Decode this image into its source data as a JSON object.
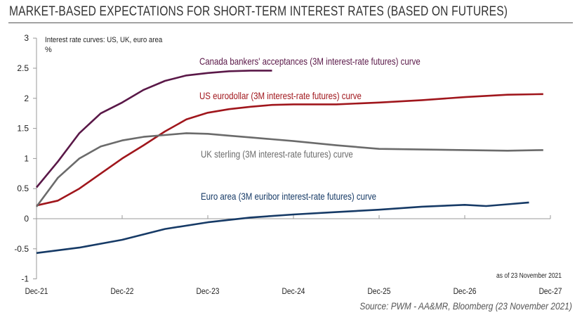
{
  "title": "MARKET-BASED EXPECTATIONS FOR SHORT-TERM INTEREST RATES (BASED ON FUTURES)",
  "source": "Source: PWM - AA&MR, Bloomberg (23 November 2021)",
  "chart_data": {
    "type": "line",
    "subtitle": "Interest rate curves: US, UK, euro area",
    "ylabel": "%",
    "note": "as of 23 November 2021",
    "ylim": [
      -1,
      3
    ],
    "yticks": [
      "3",
      "2.5",
      "2",
      "1.5",
      "1",
      "0.5",
      "0",
      "-0.5",
      "-1"
    ],
    "xlim": [
      "2021-12",
      "2027-12"
    ],
    "xticks": [
      "Dec-21",
      "Dec-22",
      "Dec-23",
      "Dec-24",
      "Dec-25",
      "Dec-26",
      "Dec-27"
    ],
    "grid": false,
    "series": [
      {
        "name": "Canada bankers' acceptances (3M interest-rate futures) curve",
        "color": "#5a1848",
        "x": [
          "2021-12",
          "2022-03",
          "2022-06",
          "2022-09",
          "2022-12",
          "2023-03",
          "2023-06",
          "2023-09",
          "2023-12",
          "2024-03",
          "2024-06",
          "2024-09"
        ],
        "y": [
          0.52,
          0.95,
          1.42,
          1.75,
          1.93,
          2.14,
          2.29,
          2.38,
          2.42,
          2.45,
          2.46,
          2.46
        ]
      },
      {
        "name": "US eurodollar (3M interest-rate futures) curve",
        "color": "#a0161c",
        "x": [
          "2021-12",
          "2022-03",
          "2022-06",
          "2022-09",
          "2022-12",
          "2023-03",
          "2023-06",
          "2023-09",
          "2023-12",
          "2024-03",
          "2024-06",
          "2024-09",
          "2024-12",
          "2025-06",
          "2025-12",
          "2026-06",
          "2026-12",
          "2027-06",
          "2027-11"
        ],
        "y": [
          0.22,
          0.3,
          0.5,
          0.75,
          1.0,
          1.22,
          1.45,
          1.65,
          1.76,
          1.82,
          1.86,
          1.89,
          1.9,
          1.9,
          1.93,
          1.97,
          2.02,
          2.06,
          2.07
        ]
      },
      {
        "name": "UK sterling (3M interest-rate futures) curve",
        "color": "#6b6b6b",
        "x": [
          "2021-12",
          "2022-03",
          "2022-06",
          "2022-09",
          "2022-12",
          "2023-03",
          "2023-06",
          "2023-09",
          "2023-12",
          "2024-03",
          "2024-06",
          "2024-09",
          "2024-12",
          "2025-06",
          "2025-12",
          "2026-06",
          "2026-12",
          "2027-06",
          "2027-11"
        ],
        "y": [
          0.2,
          0.68,
          1.0,
          1.2,
          1.3,
          1.36,
          1.39,
          1.42,
          1.41,
          1.38,
          1.35,
          1.32,
          1.29,
          1.22,
          1.16,
          1.15,
          1.14,
          1.13,
          1.14
        ]
      },
      {
        "name": "Euro area (3M euribor interest-rate futures) curve",
        "color": "#163a66",
        "x": [
          "2021-12",
          "2022-06",
          "2022-12",
          "2023-06",
          "2023-12",
          "2024-06",
          "2024-12",
          "2025-06",
          "2025-12",
          "2026-06",
          "2026-12",
          "2027-03",
          "2027-06",
          "2027-09"
        ],
        "y": [
          -0.57,
          -0.48,
          -0.35,
          -0.17,
          -0.06,
          0.02,
          0.07,
          0.11,
          0.15,
          0.2,
          0.23,
          0.21,
          0.24,
          0.27
        ]
      }
    ]
  }
}
